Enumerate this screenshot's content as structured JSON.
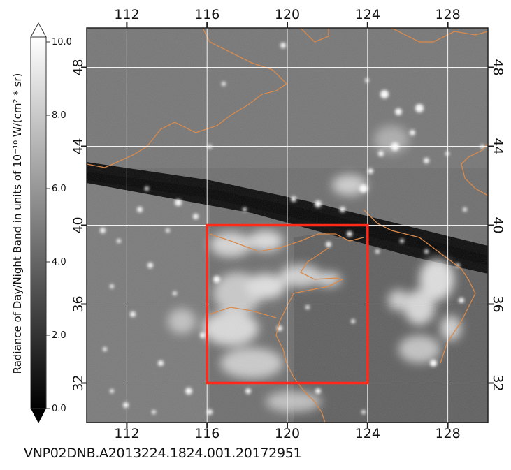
{
  "colorbar": {
    "title": "Radiance of Day/Night Band in units of 10⁻¹⁰ W/(cm² * sr)",
    "ticks": [
      "0.0",
      "2.0",
      "4.0",
      "6.0",
      "8.0",
      "10.0"
    ],
    "min": 0,
    "max": 10
  },
  "map": {
    "lon_labels": [
      "112",
      "116",
      "120",
      "124",
      "128"
    ],
    "lon_values": [
      112,
      116,
      120,
      124,
      128
    ],
    "lat_labels": [
      "32",
      "36",
      "40",
      "44",
      "48"
    ],
    "lat_values": [
      32,
      36,
      40,
      44,
      48
    ],
    "lon_range": [
      110,
      130
    ],
    "lat_range": [
      30,
      50
    ],
    "highlight_box": {
      "lon": [
        116,
        124
      ],
      "lat": [
        32,
        40
      ],
      "color": "#ff2a1a"
    },
    "border_color": "#d98a4c",
    "grid_color": "#ffffff"
  },
  "caption": "VNP02DNB.A2013224.1824.001.20172951"
}
